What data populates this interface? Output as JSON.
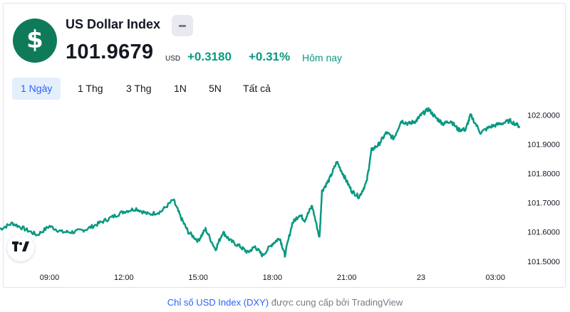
{
  "header": {
    "logo_icon": "dollar-sign-icon",
    "title": "US Dollar Index",
    "badge_icon": "minus-icon",
    "price": "101.9679",
    "currency": "USD",
    "change": "+0.3180",
    "change_pct": "+0.31%",
    "change_period": "Hôm nay"
  },
  "tabs": [
    {
      "label": "1 Ngày",
      "active": true
    },
    {
      "label": "1 Thg",
      "active": false
    },
    {
      "label": "3 Thg",
      "active": false
    },
    {
      "label": "1N",
      "active": false
    },
    {
      "label": "5N",
      "active": false
    },
    {
      "label": "Tất cả",
      "active": false
    }
  ],
  "colors": {
    "line": "#089981",
    "positive": "#089981",
    "accent": "#2962ff",
    "logo_bg": "#0f7a5a"
  },
  "chart_data": {
    "type": "line",
    "title": "",
    "xlabel": "",
    "ylabel": "",
    "x_ticks": [
      "09:00",
      "12:00",
      "15:00",
      "18:00",
      "21:00",
      "23",
      "03:00"
    ],
    "y_ticks": [
      "102.0000",
      "101.9000",
      "101.8000",
      "101.7000",
      "101.6000",
      "101.5000"
    ],
    "ylim": [
      101.48,
      102.04
    ],
    "x_range_hours": [
      7.0,
      28.0
    ],
    "series": [
      {
        "x": [
          7.0,
          7.5,
          8.0,
          8.5,
          9.0,
          9.5,
          10.0,
          10.5,
          11.0,
          11.5,
          12.0,
          12.5,
          13.0,
          13.5,
          14.0,
          14.3,
          14.6,
          15.0,
          15.3,
          15.7,
          16.0,
          16.3,
          16.7,
          17.0,
          17.3,
          17.6,
          18.0,
          18.3,
          18.5,
          18.8,
          19.1,
          19.3,
          19.6,
          19.9,
          20.0,
          20.3,
          20.6,
          20.9,
          21.2,
          21.5,
          21.8,
          22.0,
          22.3,
          22.6,
          22.9,
          23.2,
          23.5,
          23.8,
          24.0,
          24.3,
          24.6,
          24.9,
          25.2,
          25.5,
          25.8,
          26.0,
          26.4,
          26.8,
          27.2,
          27.6,
          28.0
        ],
        "y": [
          101.61,
          101.63,
          101.61,
          101.59,
          101.62,
          101.6,
          101.6,
          101.61,
          101.63,
          101.65,
          101.67,
          101.68,
          101.66,
          101.67,
          101.71,
          101.65,
          101.6,
          101.57,
          101.61,
          101.54,
          101.6,
          101.57,
          101.55,
          101.53,
          101.55,
          101.52,
          101.56,
          101.58,
          101.52,
          101.63,
          101.66,
          101.64,
          101.69,
          101.58,
          101.74,
          101.78,
          101.84,
          101.79,
          101.74,
          101.72,
          101.77,
          101.88,
          101.9,
          101.94,
          101.92,
          101.98,
          101.97,
          101.98,
          102.0,
          102.02,
          101.99,
          101.97,
          101.98,
          101.95,
          101.95,
          102.0,
          101.94,
          101.96,
          101.97,
          101.98,
          101.96
        ]
      }
    ],
    "grid": false,
    "legend": "none"
  },
  "footer": {
    "link_text": "Chỉ số USD Index (DXY)",
    "rest_text": "được cung cấp bởi TradingView"
  }
}
